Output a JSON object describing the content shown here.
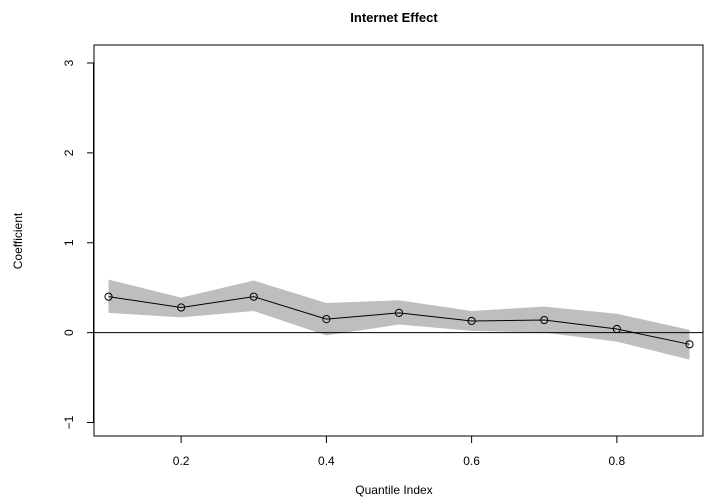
{
  "chart_data": {
    "type": "line",
    "title": "Internet Effect",
    "xlabel": "Quantile Index",
    "ylabel": "Coefficient",
    "xlim": [
      0.08,
      0.92
    ],
    "ylim": [
      -1.15,
      3.2
    ],
    "x_ticks": [
      0.2,
      0.4,
      0.6,
      0.8
    ],
    "x_tick_labels": [
      "0.2",
      "0.4",
      "0.6",
      "0.8"
    ],
    "y_ticks": [
      -1,
      0,
      1,
      2,
      3
    ],
    "y_tick_labels": [
      "−1",
      "0",
      "1",
      "2",
      "3"
    ],
    "reference_line": 0,
    "grid": false,
    "series": [
      {
        "x": [
          0.1,
          0.2,
          0.3,
          0.4,
          0.5,
          0.6,
          0.7,
          0.8,
          0.9
        ],
        "values": [
          0.4,
          0.28,
          0.4,
          0.15,
          0.22,
          0.13,
          0.14,
          0.04,
          -0.13
        ],
        "lower": [
          0.22,
          0.17,
          0.24,
          -0.03,
          0.09,
          0.02,
          0.0,
          -0.1,
          -0.3
        ],
        "upper": [
          0.59,
          0.39,
          0.58,
          0.33,
          0.36,
          0.24,
          0.29,
          0.21,
          0.03
        ]
      }
    ],
    "colors": {
      "band": "#bebebe",
      "line": "#000000",
      "axes": "#000000"
    }
  }
}
